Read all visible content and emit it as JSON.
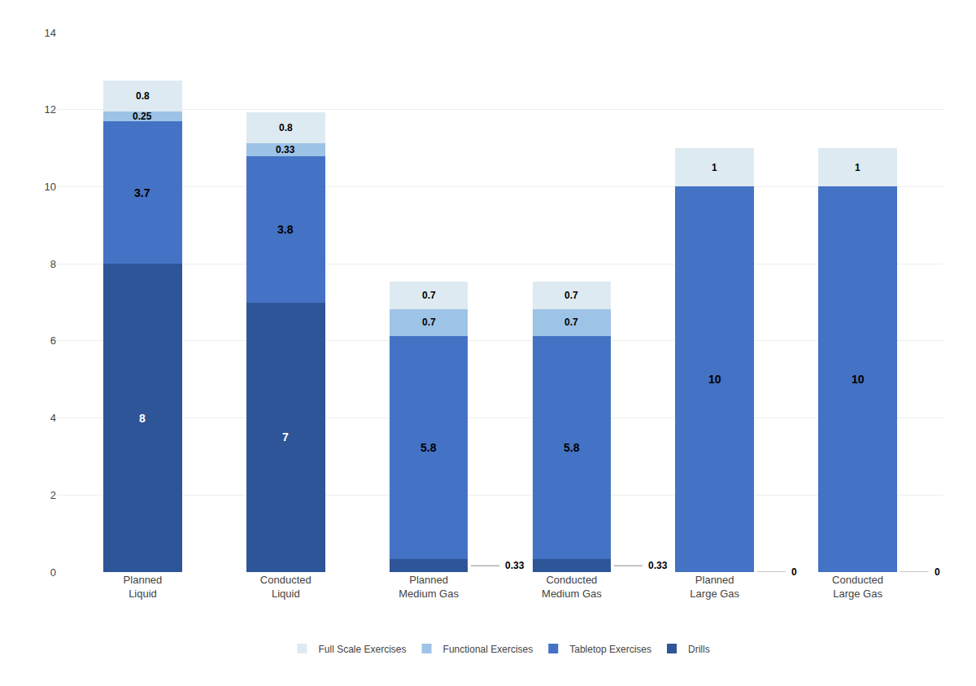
{
  "chart_data": {
    "type": "bar",
    "stacked": true,
    "categories": [
      "Planned\nLiquid",
      "Conducted\nLiquid",
      "Planned\nMedium Gas",
      "Conducted\nMedium Gas",
      "Planned\nLarge Gas",
      "Conducted\nLarge Gas"
    ],
    "series": [
      {
        "name": "Drills",
        "color": "#2E5597",
        "values": [
          8,
          7,
          0.33,
          0.33,
          0,
          0
        ]
      },
      {
        "name": "Tabletop Exercises",
        "color": "#4472C4",
        "values": [
          3.7,
          3.8,
          5.8,
          5.8,
          10,
          10
        ]
      },
      {
        "name": "Functional Exercises",
        "color": "#9DC3E6",
        "values": [
          0.25,
          0.33,
          0.7,
          0.7,
          0.0,
          0.0
        ],
        "value_labels": [
          "0.25",
          "0.33",
          "0.7",
          "0.7",
          null,
          null
        ]
      },
      {
        "name": "Full Scale Exercises",
        "color": "#DEEAF1",
        "values": [
          0.8,
          0.8,
          0.7,
          0.7,
          1.0,
          1.0
        ]
      }
    ],
    "ylim": [
      0,
      14
    ],
    "yticks": [
      0,
      2,
      4,
      6,
      8,
      10,
      12,
      14
    ],
    "grid": true,
    "legend": "bottom",
    "data_labels": true
  }
}
